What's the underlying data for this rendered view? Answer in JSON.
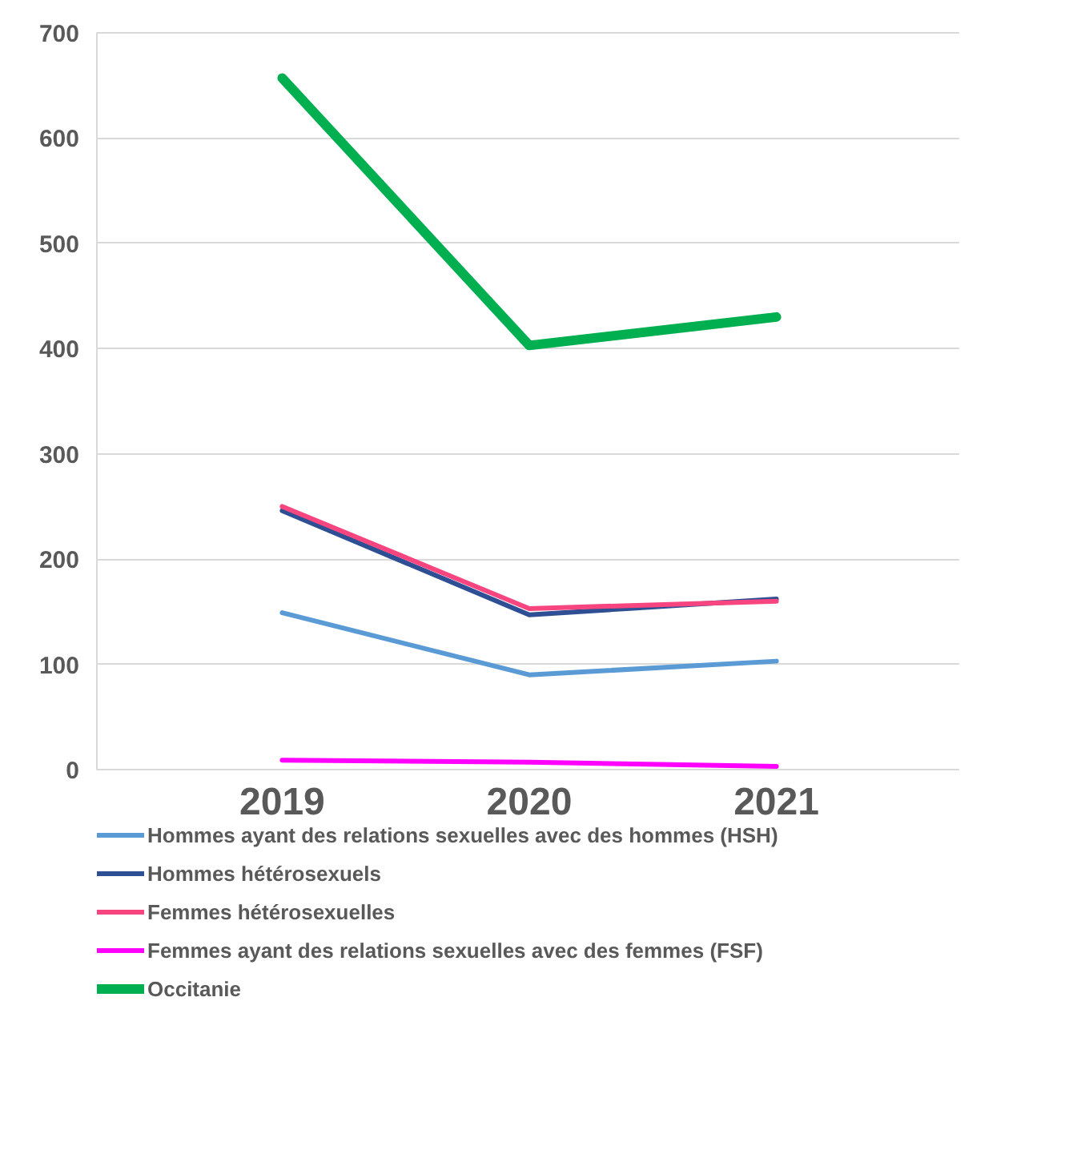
{
  "chart_data": {
    "type": "line",
    "categories": [
      "2019",
      "2020",
      "2021"
    ],
    "series": [
      {
        "name": "Hommes ayant des relations sexuelles avec des hommes (HSH)",
        "color": "#5b9bd5",
        "values": [
          149,
          90,
          103
        ]
      },
      {
        "name": "Hommes hétérosexuels",
        "color": "#2f4f94",
        "values": [
          246,
          147,
          162
        ]
      },
      {
        "name": "Femmes hétérosexuelles",
        "color": "#f7457f",
        "values": [
          250,
          153,
          160
        ]
      },
      {
        "name": "Femmes ayant des relations sexuelles avec des femmes (FSF)",
        "color": "#ff00ff",
        "values": [
          9,
          7,
          3
        ]
      },
      {
        "name": "Occitanie",
        "color": "#00b050",
        "values": [
          657,
          403,
          430
        ]
      }
    ],
    "ylim": [
      0,
      700
    ],
    "yticks": [
      0,
      100,
      200,
      300,
      400,
      500,
      600,
      700
    ],
    "grid": "y",
    "legend": "bottom",
    "marker": "none",
    "line_style": "solid"
  }
}
